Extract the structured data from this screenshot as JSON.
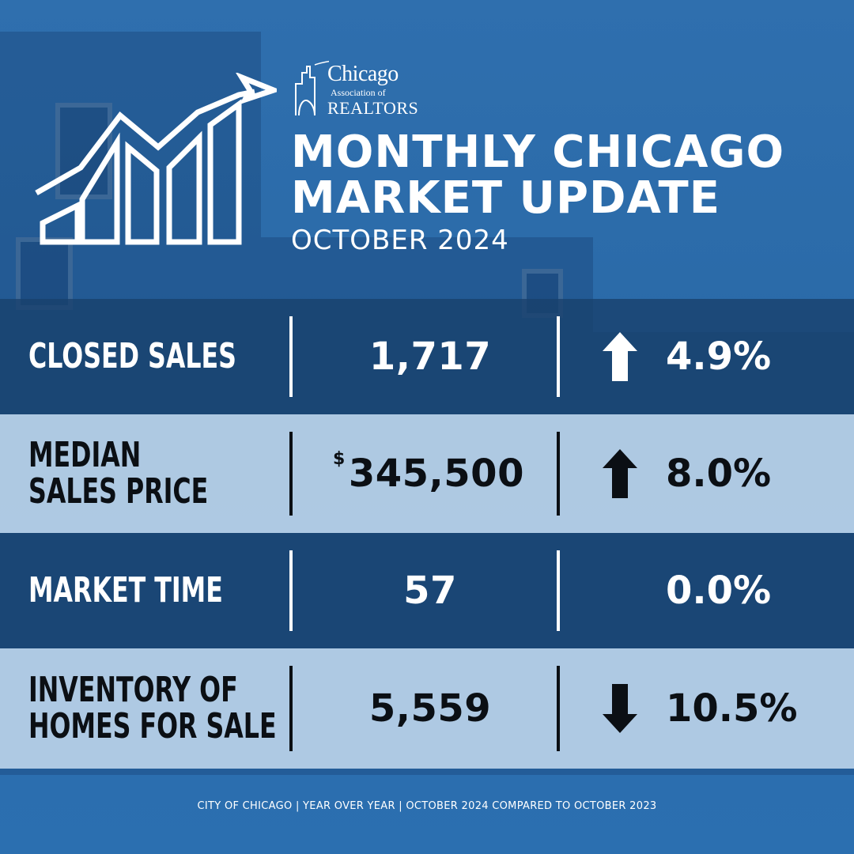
{
  "colors": {
    "accent_blue": "#2b6fb0",
    "dark_band": "#18406c",
    "light_band": "#d6e8f8",
    "text_dark": "#0b0f14",
    "text_light": "#ffffff"
  },
  "logo": {
    "line1": "Chicago",
    "line2": "Association of",
    "line3": "REALTORS",
    "icon": "skyline-logo-icon"
  },
  "header": {
    "icon": "growth-chart-icon",
    "title_line1": "MONTHLY CHICAGO",
    "title_line2": "MARKET UPDATE",
    "subtitle": "OCTOBER 2024"
  },
  "stats": [
    {
      "label_line1": "CLOSED SALES",
      "label_line2": "",
      "currency": "",
      "value": "1,717",
      "direction": "up",
      "change": "4.9%"
    },
    {
      "label_line1": "MEDIAN",
      "label_line2": "SALES PRICE",
      "currency": "$",
      "value": "345,500",
      "direction": "up",
      "change": "8.0%"
    },
    {
      "label_line1": "MARKET TIME",
      "label_line2": "",
      "currency": "",
      "value": "57",
      "direction": "none",
      "change": "0.0%"
    },
    {
      "label_line1": "INVENTORY OF",
      "label_line2": "HOMES FOR SALE",
      "currency": "",
      "value": "5,559",
      "direction": "down",
      "change": "10.5%"
    }
  ],
  "footer": "CITY OF CHICAGO | YEAR OVER YEAR | OCTOBER 2024 COMPARED TO OCTOBER 2023"
}
